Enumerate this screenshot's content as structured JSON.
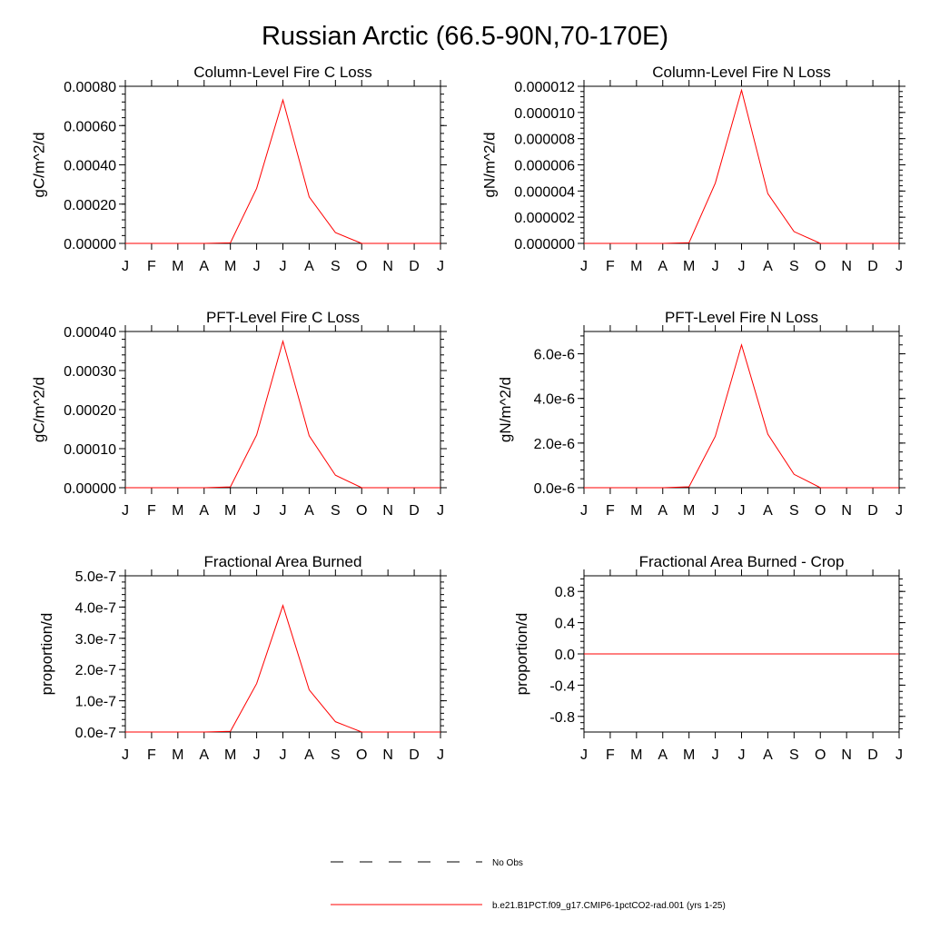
{
  "title": "Russian Arctic (66.5-90N,70-170E)",
  "colors": {
    "series": "#ff0000",
    "axes": "#000000",
    "obs": "#000000"
  },
  "legend": {
    "obs_label": "No Obs",
    "model_label": "b.e21.B1PCT.f09_g17.CMIP6-1pctCO2-rad.001 (yrs 1-25)"
  },
  "chart_data": [
    {
      "type": "line",
      "title": "Column-Level Fire C Loss",
      "ylabel": "gC/m^2/d",
      "categories": [
        "J",
        "F",
        "M",
        "A",
        "M",
        "J",
        "J",
        "A",
        "S",
        "O",
        "N",
        "D",
        "J"
      ],
      "ylim": [
        0,
        0.0008
      ],
      "yticks": [
        0,
        0.0002,
        0.0004,
        0.0006,
        0.0008
      ],
      "ytick_labels": [
        "0.00000",
        "0.00020",
        "0.00040",
        "0.00060",
        "0.00080"
      ],
      "series": [
        {
          "values": [
            0,
            0,
            0,
            0,
            3e-06,
            0.00028,
            0.00073,
            0.000237,
            5.5e-05,
            0,
            0,
            0,
            0
          ]
        }
      ]
    },
    {
      "type": "line",
      "title": "Column-Level Fire N Loss",
      "ylabel": "gN/m^2/d",
      "categories": [
        "J",
        "F",
        "M",
        "A",
        "M",
        "J",
        "J",
        "A",
        "S",
        "O",
        "N",
        "D",
        "J"
      ],
      "ylim": [
        0,
        1.2e-05
      ],
      "yticks": [
        0,
        2e-06,
        4e-06,
        6e-06,
        8e-06,
        1e-05,
        1.2e-05
      ],
      "ytick_labels": [
        "0.000000",
        "0.000002",
        "0.000004",
        "0.000006",
        "0.000008",
        "0.000010",
        "0.000012"
      ],
      "series": [
        {
          "values": [
            0,
            0,
            0,
            0,
            5e-08,
            4.6e-06,
            1.17e-05,
            3.8e-06,
            9e-07,
            0,
            0,
            0,
            0
          ]
        }
      ]
    },
    {
      "type": "line",
      "title": "PFT-Level Fire C Loss",
      "ylabel": "gC/m^2/d",
      "categories": [
        "J",
        "F",
        "M",
        "A",
        "M",
        "J",
        "J",
        "A",
        "S",
        "O",
        "N",
        "D",
        "J"
      ],
      "ylim": [
        0,
        0.0004
      ],
      "yticks": [
        0,
        0.0001,
        0.0002,
        0.0003,
        0.0004
      ],
      "ytick_labels": [
        "0.00000",
        "0.00010",
        "0.00020",
        "0.00030",
        "0.00040"
      ],
      "series": [
        {
          "values": [
            0,
            0,
            0,
            0,
            2e-06,
            0.000135,
            0.000375,
            0.000133,
            3.2e-05,
            0,
            0,
            0,
            0
          ]
        }
      ]
    },
    {
      "type": "line",
      "title": "PFT-Level Fire N Loss",
      "ylabel": "gN/m^2/d",
      "categories": [
        "J",
        "F",
        "M",
        "A",
        "M",
        "J",
        "J",
        "A",
        "S",
        "O",
        "N",
        "D",
        "J"
      ],
      "ylim": [
        0,
        7e-06
      ],
      "yticks": [
        0,
        2e-06,
        4e-06,
        6e-06
      ],
      "ytick_labels": [
        "0.0e-6",
        "2.0e-6",
        "4.0e-6",
        "6.0e-6"
      ],
      "series": [
        {
          "values": [
            0,
            0,
            0,
            0,
            4e-08,
            2.3e-06,
            6.4e-06,
            2.4e-06,
            6e-07,
            0,
            0,
            0,
            0
          ]
        }
      ]
    },
    {
      "type": "line",
      "title": "Fractional Area Burned",
      "ylabel": "proportion/d",
      "categories": [
        "J",
        "F",
        "M",
        "A",
        "M",
        "J",
        "J",
        "A",
        "S",
        "O",
        "N",
        "D",
        "J"
      ],
      "ylim": [
        0,
        5e-07
      ],
      "yticks": [
        0,
        1e-07,
        2e-07,
        3e-07,
        4e-07,
        5e-07
      ],
      "ytick_labels": [
        "0.0e-7",
        "1.0e-7",
        "2.0e-7",
        "3.0e-7",
        "4.0e-7",
        "5.0e-7"
      ],
      "series": [
        {
          "values": [
            0,
            0,
            0,
            0,
            2e-09,
            1.55e-07,
            4.05e-07,
            1.35e-07,
            3.3e-08,
            0,
            0,
            0,
            0
          ]
        }
      ]
    },
    {
      "type": "line",
      "title": "Fractional Area Burned - Crop",
      "ylabel": "proportion/d",
      "categories": [
        "J",
        "F",
        "M",
        "A",
        "M",
        "J",
        "J",
        "A",
        "S",
        "O",
        "N",
        "D",
        "J"
      ],
      "ylim": [
        -1,
        1
      ],
      "yticks": [
        -0.8,
        -0.4,
        0,
        0.4,
        0.8
      ],
      "ytick_labels": [
        "-0.8",
        "-0.4",
        "0.0",
        "0.4",
        "0.8"
      ],
      "series": [
        {
          "values": [
            0,
            0,
            0,
            0,
            0,
            0,
            0,
            0,
            0,
            0,
            0,
            0,
            0
          ]
        }
      ]
    }
  ]
}
